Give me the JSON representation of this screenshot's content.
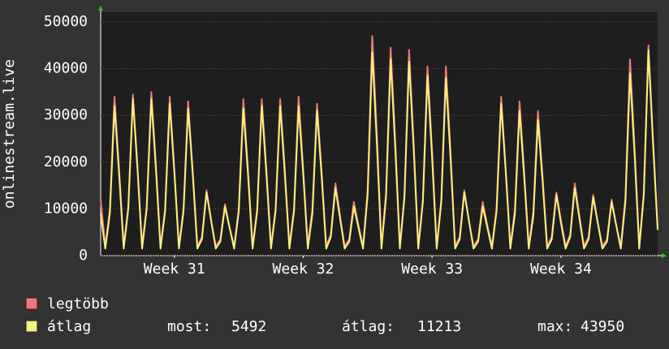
{
  "chart_data": {
    "type": "line",
    "y_label": "onlinestream.live",
    "xlim": [
      0,
      121
    ],
    "ylim": [
      0,
      50000
    ],
    "yticks": [
      0,
      10000,
      20000,
      30000,
      40000,
      50000
    ],
    "xticks": [
      {
        "value": 16,
        "label": "Week 31"
      },
      {
        "value": 44,
        "label": "Week 32"
      },
      {
        "value": 72,
        "label": "Week 33"
      },
      {
        "value": 100,
        "label": "Week 34"
      }
    ],
    "grid": true,
    "series": [
      {
        "name": "legtöbb",
        "color": "#f07878",
        "values": [
          12000,
          2000,
          10000,
          34000,
          18500,
          2000,
          10500,
          34500,
          19000,
          2000,
          10500,
          35000,
          19500,
          2000,
          10000,
          34000,
          18500,
          2000,
          10000,
          33000,
          18000,
          2000,
          4000,
          14000,
          7500,
          2000,
          3500,
          11000,
          6000,
          2000,
          10000,
          33500,
          18500,
          2000,
          10000,
          33500,
          18500,
          2000,
          10000,
          33500,
          18500,
          2000,
          10000,
          34000,
          18500,
          2000,
          10000,
          32500,
          18000,
          2000,
          4500,
          15500,
          8500,
          2000,
          3500,
          11500,
          6500,
          2000,
          14000,
          47000,
          26000,
          2000,
          13500,
          44500,
          24500,
          2000,
          13000,
          44000,
          24000,
          2000,
          12000,
          40500,
          22500,
          2000,
          12000,
          40500,
          22500,
          2000,
          4000,
          14000,
          7500,
          2000,
          3500,
          11500,
          6500,
          2000,
          10000,
          34000,
          18500,
          2000,
          10000,
          33000,
          18000,
          2000,
          9500,
          31000,
          17000,
          2000,
          4000,
          13500,
          7500,
          2000,
          4500,
          15500,
          8500,
          2000,
          4000,
          13000,
          7000,
          2000,
          3500,
          12000,
          6500,
          2000,
          12500,
          42000,
          23000,
          2000,
          13500,
          45000,
          25000,
          6000
        ]
      },
      {
        "name": "átlag",
        "color": "#f8f080",
        "values": [
          9000,
          1500,
          9000,
          32000,
          17500,
          1500,
          10000,
          33500,
          18500,
          1500,
          10000,
          33500,
          18500,
          1500,
          9500,
          32500,
          18000,
          1500,
          9500,
          31500,
          17500,
          1500,
          3500,
          13500,
          7500,
          1500,
          3000,
          10500,
          6000,
          1500,
          9500,
          31500,
          17500,
          1500,
          9500,
          32000,
          17500,
          1500,
          9500,
          32000,
          17500,
          1500,
          9500,
          32000,
          17500,
          1500,
          9000,
          31000,
          17000,
          1500,
          4000,
          14500,
          8000,
          1500,
          3000,
          10500,
          6000,
          1500,
          13000,
          43500,
          24000,
          1500,
          12500,
          42000,
          23000,
          1500,
          12500,
          41500,
          23000,
          1500,
          11500,
          38500,
          21000,
          1500,
          11500,
          38000,
          21000,
          1500,
          3500,
          13500,
          7500,
          1500,
          3000,
          10500,
          6000,
          1500,
          9500,
          32500,
          18000,
          1500,
          9000,
          31000,
          17000,
          1500,
          8500,
          29000,
          16000,
          1500,
          3500,
          13000,
          7000,
          1500,
          4000,
          14500,
          8000,
          1500,
          3500,
          12500,
          7000,
          1500,
          3000,
          11500,
          6500,
          1500,
          11500,
          39000,
          21500,
          1500,
          13000,
          43950,
          24000,
          5492
        ]
      }
    ]
  },
  "legend_stats": [
    {
      "label": "most:",
      "value": 5492
    },
    {
      "label": "átlag:",
      "value": 11213
    },
    {
      "label": "max:",
      "value": 43950
    }
  ]
}
